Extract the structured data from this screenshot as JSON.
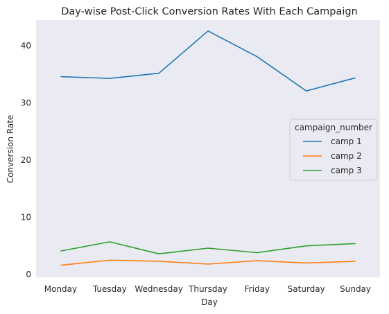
{
  "chart_data": {
    "type": "line",
    "title": "Day-wise Post-Click Conversion Rates With Each Campaign",
    "xlabel": "Day",
    "ylabel": "Conversion Rate",
    "categories": [
      "Monday",
      "Tuesday",
      "Wednesday",
      "Thursday",
      "Friday",
      "Saturday",
      "Sunday"
    ],
    "ylim": [
      -0.5,
      44.5
    ],
    "yticks": [
      0,
      10,
      20,
      30,
      40
    ],
    "grid": false,
    "legend": {
      "title": "campaign_number",
      "placement": "center-right"
    },
    "series": [
      {
        "name": "camp 1",
        "color": "#1f77b4",
        "values": [
          34.6,
          34.3,
          35.2,
          42.6,
          38.1,
          32.1,
          34.4
        ]
      },
      {
        "name": "camp 2",
        "color": "#ff7f0e",
        "values": [
          1.6,
          2.5,
          2.3,
          1.8,
          2.4,
          2.0,
          2.3
        ]
      },
      {
        "name": "camp 3",
        "color": "#2ca02c",
        "values": [
          4.1,
          5.7,
          3.6,
          4.6,
          3.8,
          5.0,
          5.4
        ]
      }
    ]
  },
  "colors": {
    "plot_background": "#eaeaf2",
    "text": "#262626"
  }
}
